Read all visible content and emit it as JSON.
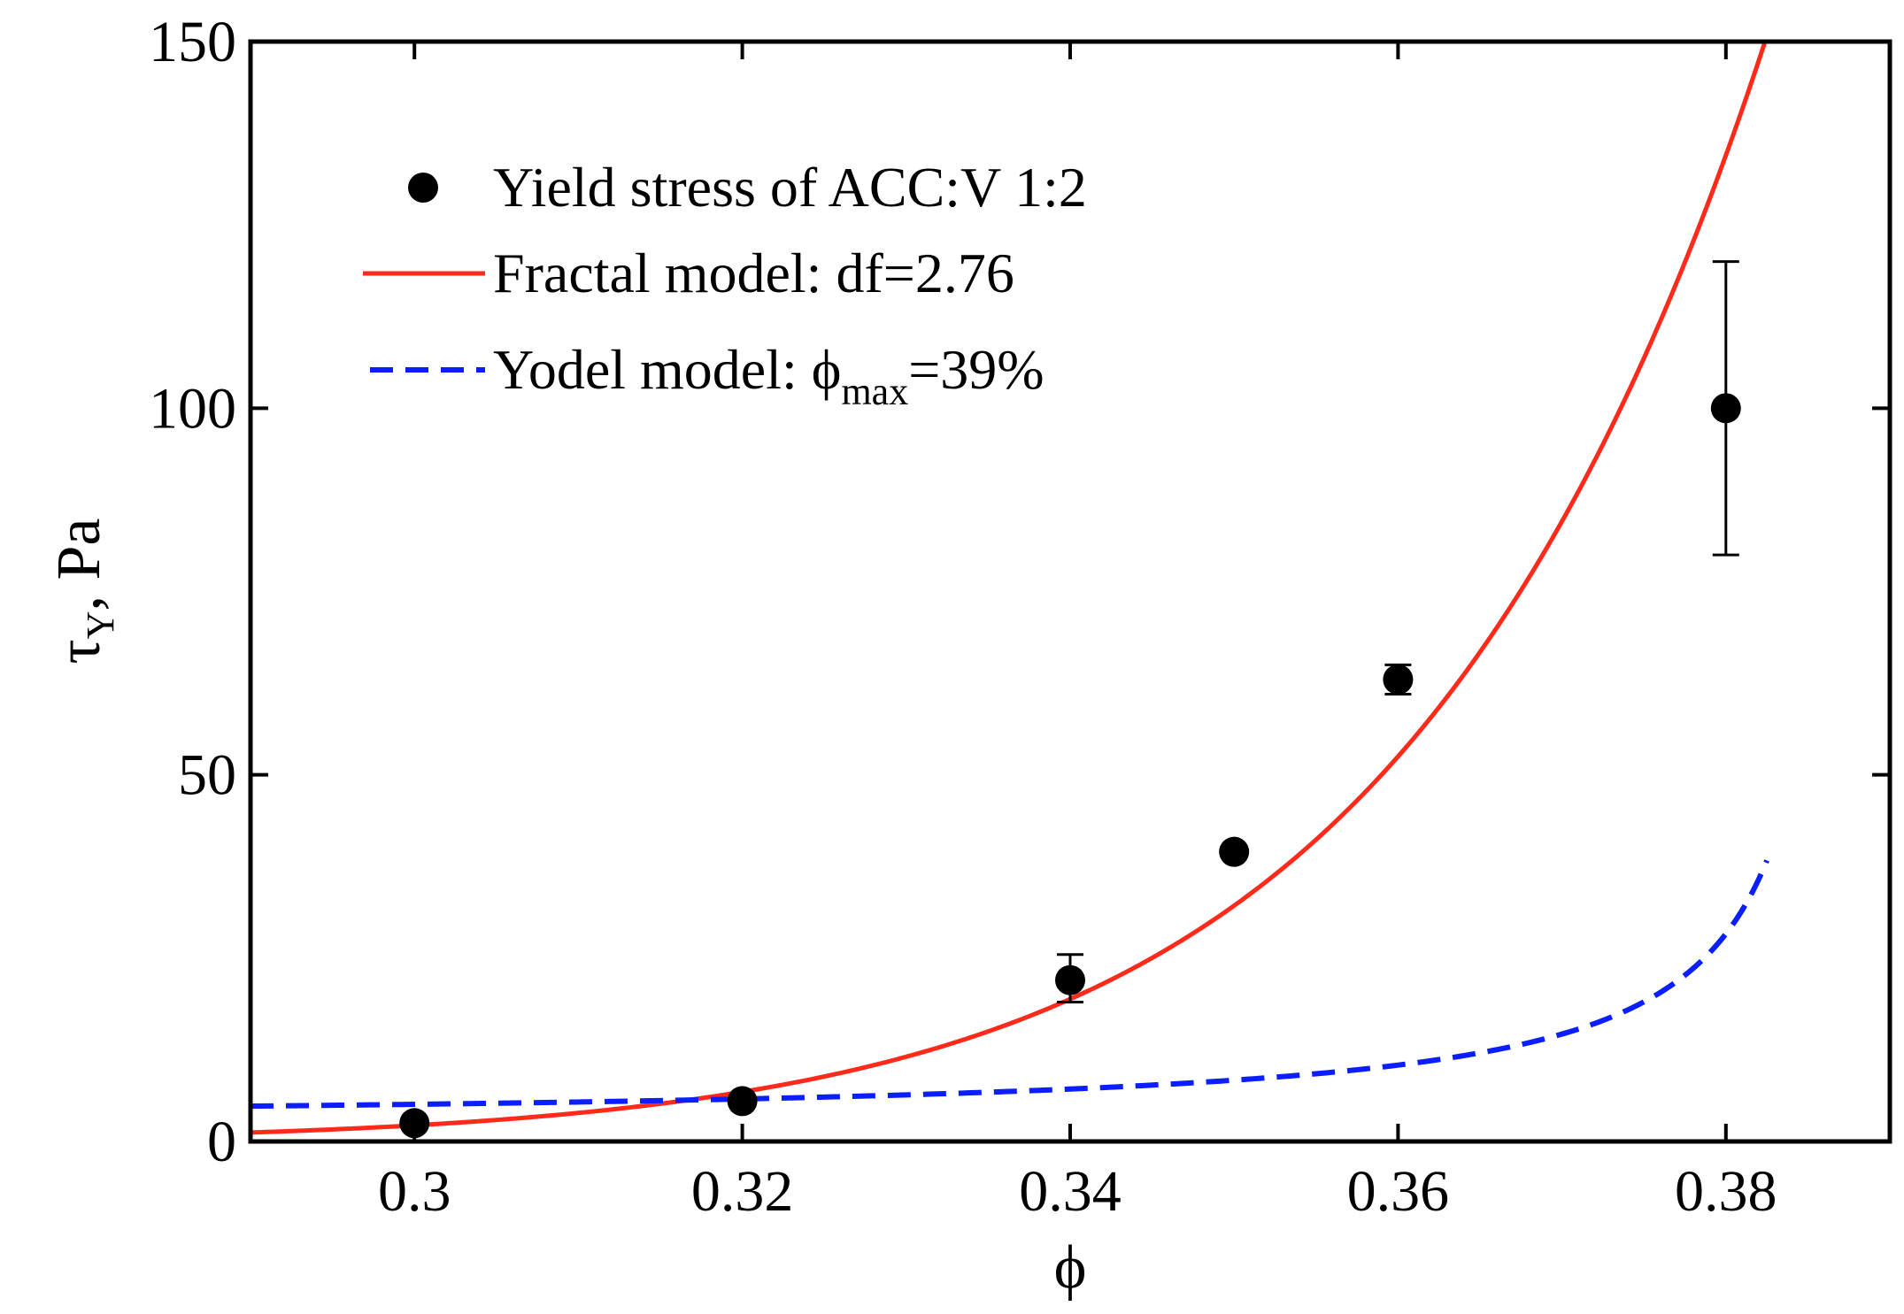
{
  "chart_data": {
    "type": "scatter",
    "xlabel": "ϕ",
    "ylabel": {
      "base": "τ",
      "sub": "Y",
      "rest": ", Pa"
    },
    "xlim": [
      0.29,
      0.39
    ],
    "ylim": [
      0,
      150
    ],
    "xticks": [
      0.3,
      0.32,
      0.34,
      0.36,
      0.38
    ],
    "xtick_labels": [
      "0.3",
      "0.32",
      "0.34",
      "0.36",
      "0.38"
    ],
    "yticks": [
      0,
      50,
      100,
      150
    ],
    "ytick_labels": [
      "0",
      "50",
      "100",
      "150"
    ],
    "legend_position": "top-left",
    "series": [
      {
        "name": "Yield stress of ACC:V 1:2",
        "kind": "points",
        "color": "#000000",
        "x": [
          0.3,
          0.32,
          0.34,
          0.35,
          0.36,
          0.38
        ],
        "y": [
          2.5,
          5.5,
          22,
          39.5,
          63,
          100
        ],
        "err_low": [
          0,
          0,
          3,
          0,
          2,
          20
        ],
        "err_high": [
          0,
          0,
          3.5,
          0,
          2,
          20
        ]
      },
      {
        "name": "Fractal model: df=2.76",
        "kind": "line",
        "color": "#ff2a1a",
        "model": "power",
        "params": {
          "A": 3.22e-07,
          "phi_ref": 0.3,
          "factor": 1,
          "exponent": 25.5
        },
        "x_range": [
          0.29,
          0.384
        ]
      },
      {
        "name": "Yodel model: ϕ",
        "name_sub": "max",
        "name_rest": "=39%",
        "kind": "dashed-line",
        "color": "#0a1eff",
        "model": "yodel",
        "params": {
          "A": 0.17,
          "phi_max": 0.389,
          "offset": 3.5
        },
        "x_range": [
          0.29,
          0.3825
        ]
      }
    ]
  }
}
